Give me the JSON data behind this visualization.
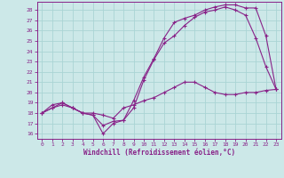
{
  "xlabel": "Windchill (Refroidissement éolien,°C)",
  "bg_color": "#cce8e8",
  "grid_color": "#aad4d4",
  "line_color": "#882288",
  "xlim": [
    -0.5,
    23.5
  ],
  "ylim": [
    15.5,
    28.8
  ],
  "xticks": [
    0,
    1,
    2,
    3,
    4,
    5,
    6,
    7,
    8,
    9,
    10,
    11,
    12,
    13,
    14,
    15,
    16,
    17,
    18,
    19,
    20,
    21,
    22,
    23
  ],
  "yticks": [
    16,
    17,
    18,
    19,
    20,
    21,
    22,
    23,
    24,
    25,
    26,
    27,
    28
  ],
  "series1_x": [
    0,
    1,
    2,
    3,
    4,
    5,
    6,
    7,
    8,
    9,
    10,
    11,
    12,
    13,
    14,
    15,
    16,
    17,
    18,
    19,
    20,
    21,
    22,
    23
  ],
  "series1_y": [
    18.0,
    18.5,
    18.8,
    18.5,
    18.0,
    18.0,
    17.8,
    17.5,
    18.5,
    18.8,
    19.2,
    19.5,
    20.0,
    20.5,
    21.0,
    21.0,
    20.5,
    20.0,
    19.8,
    19.8,
    20.0,
    20.0,
    20.2,
    20.3
  ],
  "series2_x": [
    0,
    1,
    2,
    3,
    4,
    5,
    6,
    7,
    8,
    9,
    10,
    11,
    12,
    13,
    14,
    15,
    16,
    17,
    18,
    19,
    20,
    21,
    22,
    23
  ],
  "series2_y": [
    18.0,
    18.5,
    19.0,
    18.5,
    18.0,
    17.8,
    16.8,
    17.2,
    17.3,
    18.5,
    21.2,
    23.2,
    24.8,
    25.5,
    26.5,
    27.3,
    27.8,
    28.0,
    28.3,
    28.0,
    27.5,
    25.3,
    22.5,
    20.3
  ],
  "series3_x": [
    0,
    1,
    2,
    3,
    4,
    5,
    6,
    7,
    8,
    9,
    10,
    11,
    12,
    13,
    14,
    15,
    16,
    17,
    18,
    19,
    20,
    21,
    22,
    23
  ],
  "series3_y": [
    18.0,
    18.8,
    19.0,
    18.5,
    18.0,
    17.8,
    16.0,
    17.0,
    17.3,
    19.2,
    21.5,
    23.3,
    25.3,
    26.8,
    27.2,
    27.5,
    28.0,
    28.3,
    28.5,
    28.5,
    28.2,
    28.2,
    25.5,
    20.3
  ]
}
